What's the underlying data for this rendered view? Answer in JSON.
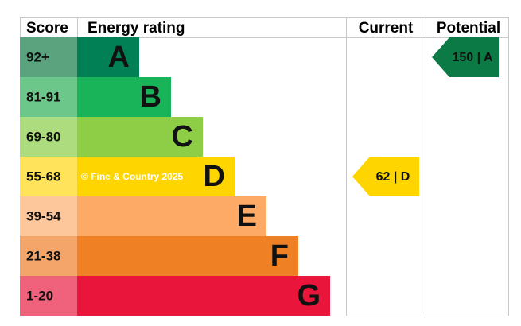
{
  "header": {
    "score": "Score",
    "energy_rating": "Energy rating",
    "current": "Current",
    "potential": "Potential"
  },
  "rows": [
    {
      "score": "92+",
      "letter": "A",
      "color": "#008054",
      "score_color": "#5ba27f"
    },
    {
      "score": "81-91",
      "letter": "B",
      "color": "#19b459",
      "score_color": "#6cc78a"
    },
    {
      "score": "69-80",
      "letter": "C",
      "color": "#8dce46",
      "score_color": "#addc7e"
    },
    {
      "score": "55-68",
      "letter": "D",
      "color": "#ffd500",
      "score_color": "#ffe35a"
    },
    {
      "score": "39-54",
      "letter": "E",
      "color": "#fcaa65",
      "score_color": "#fdc79b"
    },
    {
      "score": "21-38",
      "letter": "F",
      "color": "#ef8023",
      "score_color": "#f4a56a"
    },
    {
      "score": "1-20",
      "letter": "G",
      "color": "#e9153b",
      "score_color": "#f0617c"
    }
  ],
  "current": {
    "label": "62 | D",
    "row": 3,
    "color": "#ffd500"
  },
  "potential": {
    "label": "150 | A",
    "row": 0,
    "color": "#0c7a45"
  },
  "watermark": "© Fine & Country 2025"
}
